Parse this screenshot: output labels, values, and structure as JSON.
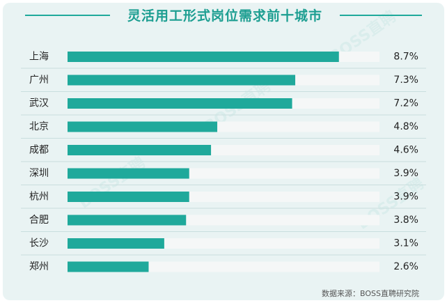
{
  "chart_data": {
    "type": "bar",
    "orientation": "horizontal",
    "title": "灵活用工形式岗位需求前十城市",
    "categories": [
      "上海",
      "广州",
      "武汉",
      "北京",
      "成都",
      "深圳",
      "杭州",
      "合肥",
      "长沙",
      "郑州"
    ],
    "values": [
      8.7,
      7.3,
      7.2,
      4.8,
      4.6,
      3.9,
      3.9,
      3.8,
      3.1,
      2.6
    ],
    "value_labels": [
      "8.7%",
      "7.3%",
      "7.2%",
      "4.8%",
      "4.6%",
      "3.9%",
      "3.9%",
      "3.8%",
      "3.1%",
      "2.6%"
    ],
    "xlim": [
      0,
      10
    ],
    "unit": "%",
    "grid": false,
    "colors": {
      "bar": "#1fa99b",
      "track": "#f5f7f7",
      "title": "#1c9e91",
      "background": "#e9f3f3"
    }
  },
  "source": "数据来源：BOSS直聘研究院",
  "watermark": "BOSS直聘"
}
